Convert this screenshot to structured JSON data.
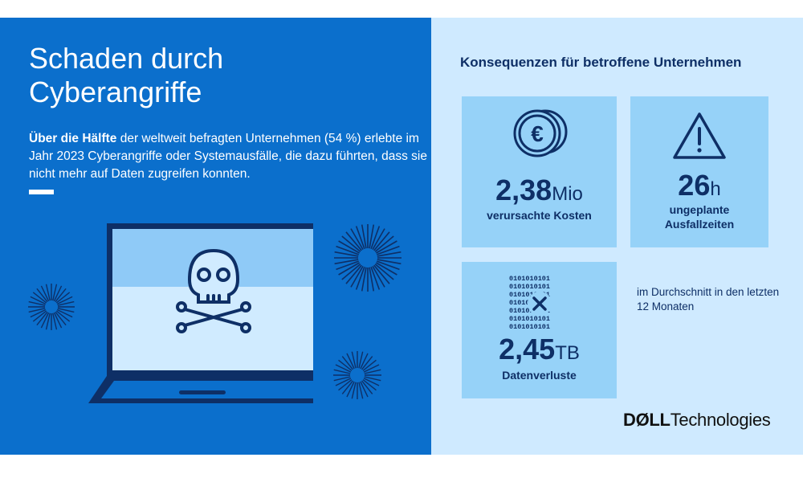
{
  "title": "Schaden durch Cyberangriffe",
  "intro": {
    "bold": "Über die Hälfte",
    "text": " der weltweit befragten Unternehmen (54 %) erlebte im Jahr 2023 Cyberangriffe oder Systemausfälle, die dazu führten, dass sie nicht mehr auf Daten zugreifen konnten."
  },
  "right_title": "Konsequenzen für betroffene Unternehmen",
  "cards": {
    "costs": {
      "number": "2,38",
      "unit": "Mio",
      "label": "verursachte Kosten",
      "icon": "euro-coins-icon"
    },
    "downtime": {
      "number": "26",
      "unit": "h",
      "label_line1": "ungeplante",
      "label_line2": "Ausfallzeiten",
      "icon": "warning-triangle-icon"
    },
    "data": {
      "number": "2,45",
      "unit": "TB",
      "label": "Datenverluste",
      "icon": "binary-data-x-icon"
    }
  },
  "note": "im Durchschnitt in den letzten 12 Monaten",
  "brand": {
    "dell": "DØLL",
    "tech": "Technologies"
  },
  "binary_text": "0101010101",
  "colors": {
    "left_panel": "#0b6fcc",
    "right_panel": "#cfeaff",
    "card": "#96d2f8",
    "navy": "#0e2f66"
  }
}
